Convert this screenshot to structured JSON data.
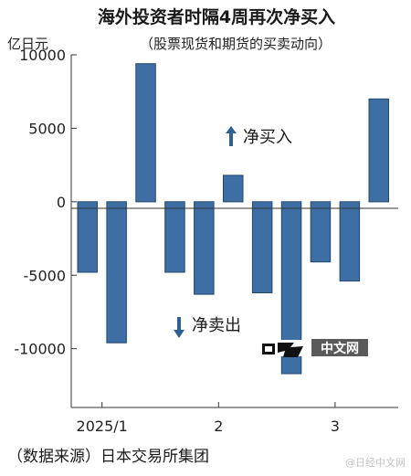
{
  "chart_data": {
    "type": "bar",
    "title": "海外投资者时隔4周再次净买入",
    "subtitle": "（股票现货和期货的买卖动向）",
    "ylabel": "亿日元",
    "ylim": [
      -14000,
      10000
    ],
    "y_ticks": [
      10000,
      5000,
      0,
      -5000,
      -10000
    ],
    "y_tick_labels": [
      "10000",
      "5000",
      "0",
      "-5000",
      "-10000"
    ],
    "x_tick_labels": [
      "2025/1",
      "2",
      "3"
    ],
    "x_tick_after_bar": [
      0,
      4,
      8
    ],
    "values": [
      -4800,
      -9600,
      9400,
      -4800,
      -6300,
      1800,
      -6200,
      -11700,
      -4100,
      -5400,
      7000
    ],
    "bar_color": "#3d6fa5",
    "bar_edge_color": "#24466c",
    "annotations": {
      "buy": "净买入",
      "sell": "净卖出"
    },
    "source": "（数据来源）日本交易所集团",
    "logo_text": "中文网",
    "watermark": "@日经中文网",
    "grid": false
  }
}
